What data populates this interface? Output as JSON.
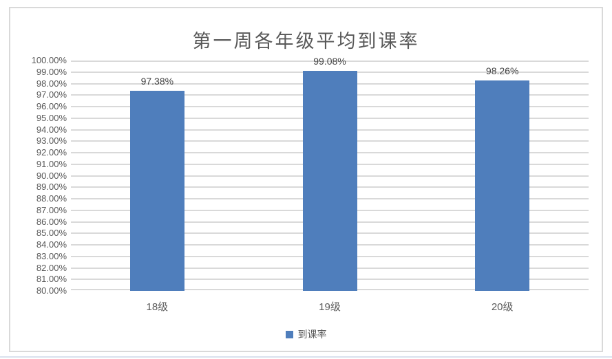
{
  "chart_data": {
    "type": "bar",
    "title": "第一周各年级平均到课率",
    "categories": [
      "18级",
      "19级",
      "20级"
    ],
    "series": [
      {
        "name": "到课率",
        "values": [
          97.38,
          99.08,
          98.26
        ]
      }
    ],
    "value_labels": [
      "97.38%",
      "99.08%",
      "98.26%"
    ],
    "xlabel": "",
    "ylabel": "",
    "ylim": [
      80,
      100
    ],
    "y_tick_step": 1,
    "y_tick_suffix": "%",
    "y_tick_decimals": 2,
    "grid": true,
    "legend_position": "bottom",
    "colors": {
      "bar": "#4F7EBC",
      "gridline": "#D9D9D9",
      "axis_text": "#595959",
      "title_text": "#595959",
      "value_label_text": "#444444",
      "frame_border": "#D9D9D9",
      "bottom_edge_line": "#D9E1EE"
    }
  }
}
